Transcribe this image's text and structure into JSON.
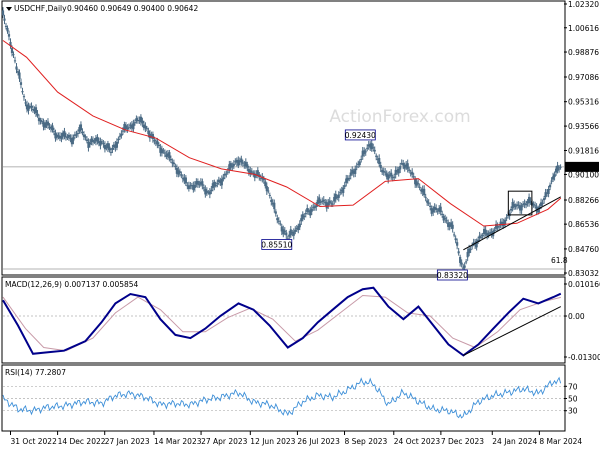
{
  "header": {
    "main_title": "USDCHF,Daily",
    "ohlc": "0.90460 0.90649 0.90400 0.90642"
  },
  "watermark": "ActionForex.com",
  "colors": {
    "candles": "#4a6a84",
    "ma": "#e02020",
    "macd": "#00008b",
    "signal": "#c89aa8",
    "rsi": "#3d8fd8",
    "price_box": "#000000",
    "label_border": "#00008b"
  },
  "chart_data": [
    {
      "type": "line",
      "title": "USDCHF,Daily",
      "subtitle": "0.90460 0.90649 0.90400 0.90642",
      "ylim": [
        0.8332,
        1.0232
      ],
      "yticks": [
        1.0232,
        1.00616,
        0.98876,
        0.97086,
        0.95316,
        0.93566,
        0.91816,
        0.901,
        0.88266,
        0.86536,
        0.8476,
        0.83032
      ],
      "ytick_labels": [
        "1.02320",
        "1.00616",
        "0.98876",
        "0.97086",
        "0.95316",
        "0.93566",
        "0.91816",
        "0.90100",
        "0.88266",
        "0.86536",
        "0.84760",
        "0.83032"
      ],
      "current_price": 0.90642,
      "current_price_label": "0.90642",
      "price_points": [
        {
          "date": "2022-10-24",
          "value": 1.015
        },
        {
          "date": "2022-10-31",
          "value": 0.996
        },
        {
          "date": "2022-11-07",
          "value": 0.974
        },
        {
          "date": "2022-11-14",
          "value": 0.952
        },
        {
          "date": "2022-11-21",
          "value": 0.948
        },
        {
          "date": "2022-11-28",
          "value": 0.94
        },
        {
          "date": "2022-12-05",
          "value": 0.936
        },
        {
          "date": "2022-12-14",
          "value": 0.929
        },
        {
          "date": "2022-12-28",
          "value": 0.927
        },
        {
          "date": "2023-01-05",
          "value": 0.933
        },
        {
          "date": "2023-01-12",
          "value": 0.924
        },
        {
          "date": "2023-01-24",
          "value": 0.925
        },
        {
          "date": "2023-02-02",
          "value": 0.917
        },
        {
          "date": "2023-02-13",
          "value": 0.932
        },
        {
          "date": "2023-02-27",
          "value": 0.94
        },
        {
          "date": "2023-03-06",
          "value": 0.936
        },
        {
          "date": "2023-03-14",
          "value": 0.925
        },
        {
          "date": "2023-03-24",
          "value": 0.917
        },
        {
          "date": "2023-04-05",
          "value": 0.905
        },
        {
          "date": "2023-04-14",
          "value": 0.893
        },
        {
          "date": "2023-04-27",
          "value": 0.894
        },
        {
          "date": "2023-05-04",
          "value": 0.888
        },
        {
          "date": "2023-05-18",
          "value": 0.899
        },
        {
          "date": "2023-05-31",
          "value": 0.912
        },
        {
          "date": "2023-06-12",
          "value": 0.904
        },
        {
          "date": "2023-06-26",
          "value": 0.896
        },
        {
          "date": "2023-07-07",
          "value": 0.87
        },
        {
          "date": "2023-07-14",
          "value": 0.86
        },
        {
          "date": "2023-07-17",
          "value": 0.8551
        },
        {
          "date": "2023-07-26",
          "value": 0.863
        },
        {
          "date": "2023-08-04",
          "value": 0.874
        },
        {
          "date": "2023-08-18",
          "value": 0.882
        },
        {
          "date": "2023-08-28",
          "value": 0.88
        },
        {
          "date": "2023-09-08",
          "value": 0.893
        },
        {
          "date": "2023-09-22",
          "value": 0.91
        },
        {
          "date": "2023-10-03",
          "value": 0.9243
        },
        {
          "date": "2023-10-12",
          "value": 0.905
        },
        {
          "date": "2023-10-24",
          "value": 0.898
        },
        {
          "date": "2023-11-01",
          "value": 0.91
        },
        {
          "date": "2023-11-13",
          "value": 0.898
        },
        {
          "date": "2023-11-28",
          "value": 0.877
        },
        {
          "date": "2023-12-07",
          "value": 0.874
        },
        {
          "date": "2023-12-18",
          "value": 0.862
        },
        {
          "date": "2023-12-28",
          "value": 0.8332
        },
        {
          "date": "2024-01-05",
          "value": 0.85
        },
        {
          "date": "2024-01-16",
          "value": 0.858
        },
        {
          "date": "2024-01-24",
          "value": 0.86
        },
        {
          "date": "2024-02-02",
          "value": 0.865
        },
        {
          "date": "2024-02-13",
          "value": 0.878
        },
        {
          "date": "2024-02-21",
          "value": 0.879
        },
        {
          "date": "2024-03-01",
          "value": 0.881
        },
        {
          "date": "2024-03-08",
          "value": 0.876
        },
        {
          "date": "2024-03-14",
          "value": 0.885
        },
        {
          "date": "2024-03-21",
          "value": 0.9
        },
        {
          "date": "2024-03-28",
          "value": 0.9064
        }
      ],
      "moving_average": [
        {
          "date": "2022-10-24",
          "value": 0.997
        },
        {
          "date": "2022-11-15",
          "value": 0.985
        },
        {
          "date": "2022-12-14",
          "value": 0.96
        },
        {
          "date": "2023-01-16",
          "value": 0.943
        },
        {
          "date": "2023-02-15",
          "value": 0.933
        },
        {
          "date": "2023-03-16",
          "value": 0.927
        },
        {
          "date": "2023-04-16",
          "value": 0.913
        },
        {
          "date": "2023-05-16",
          "value": 0.905
        },
        {
          "date": "2023-06-16",
          "value": 0.901
        },
        {
          "date": "2023-07-16",
          "value": 0.892
        },
        {
          "date": "2023-08-16",
          "value": 0.878
        },
        {
          "date": "2023-09-16",
          "value": 0.879
        },
        {
          "date": "2023-10-16",
          "value": 0.896
        },
        {
          "date": "2023-11-16",
          "value": 0.898
        },
        {
          "date": "2023-12-16",
          "value": 0.88
        },
        {
          "date": "2024-01-16",
          "value": 0.864
        },
        {
          "date": "2024-02-16",
          "value": 0.866
        },
        {
          "date": "2024-03-16",
          "value": 0.876
        },
        {
          "date": "2024-03-28",
          "value": 0.884
        }
      ],
      "annotations": [
        {
          "label": "0.92430",
          "date": "2023-10-03",
          "value": 0.9243,
          "placement": "above"
        },
        {
          "label": "0.85510",
          "date": "2023-07-17",
          "value": 0.8551,
          "placement": "below"
        },
        {
          "label": "0.83320",
          "date": "2023-12-28",
          "value": 0.8332,
          "placement": "below"
        },
        {
          "label": "61.8",
          "date": "2024-03-28",
          "value": 0.8352,
          "placement": "right"
        }
      ],
      "trendlines": [
        {
          "from": {
            "date": "2023-12-28",
            "value": 0.847
          },
          "to": {
            "date": "2024-03-28",
            "value": 0.885
          }
        }
      ],
      "horizontal_lines": [
        0.90642,
        0.8332
      ],
      "rectangle": {
        "from": {
          "date": "2024-02-08",
          "value": 0.889
        },
        "to": {
          "date": "2024-03-01",
          "value": 0.872
        }
      }
    },
    {
      "type": "line",
      "title": "MACD(12,26,9) 0.007137 0.005854",
      "ylim": [
        -0.013006,
        0.010166
      ],
      "yticks": [
        0.010166,
        0.0,
        -0.013006
      ],
      "ytick_labels": [
        "0.010166",
        "0.00",
        "-0.013006"
      ],
      "series": [
        {
          "role": "macd",
          "points": [
            {
              "date": "2022-10-24",
              "value": 0.005
            },
            {
              "date": "2022-11-07",
              "value": -0.003
            },
            {
              "date": "2022-11-21",
              "value": -0.012
            },
            {
              "date": "2022-12-05",
              "value": -0.0115
            },
            {
              "date": "2022-12-20",
              "value": -0.011
            },
            {
              "date": "2023-01-09",
              "value": -0.008
            },
            {
              "date": "2023-01-24",
              "value": -0.002
            },
            {
              "date": "2023-02-06",
              "value": 0.004
            },
            {
              "date": "2023-02-20",
              "value": 0.007
            },
            {
              "date": "2023-03-06",
              "value": 0.006
            },
            {
              "date": "2023-03-20",
              "value": -0.001
            },
            {
              "date": "2023-04-03",
              "value": -0.006
            },
            {
              "date": "2023-04-17",
              "value": -0.007
            },
            {
              "date": "2023-05-01",
              "value": -0.004
            },
            {
              "date": "2023-05-15",
              "value": 0.0
            },
            {
              "date": "2023-06-01",
              "value": 0.004
            },
            {
              "date": "2023-06-15",
              "value": 0.002
            },
            {
              "date": "2023-06-30",
              "value": -0.003
            },
            {
              "date": "2023-07-17",
              "value": -0.01
            },
            {
              "date": "2023-07-31",
              "value": -0.007
            },
            {
              "date": "2023-08-14",
              "value": -0.002
            },
            {
              "date": "2023-08-28",
              "value": 0.002
            },
            {
              "date": "2023-09-11",
              "value": 0.006
            },
            {
              "date": "2023-09-25",
              "value": 0.0085
            },
            {
              "date": "2023-10-05",
              "value": 0.009
            },
            {
              "date": "2023-10-19",
              "value": 0.003
            },
            {
              "date": "2023-11-02",
              "value": -0.001
            },
            {
              "date": "2023-11-16",
              "value": 0.003
            },
            {
              "date": "2023-11-30",
              "value": -0.003
            },
            {
              "date": "2023-12-14",
              "value": -0.009
            },
            {
              "date": "2023-12-28",
              "value": -0.0125
            },
            {
              "date": "2024-01-11",
              "value": -0.009
            },
            {
              "date": "2024-01-25",
              "value": -0.004
            },
            {
              "date": "2024-02-08",
              "value": 0.001
            },
            {
              "date": "2024-02-22",
              "value": 0.0055
            },
            {
              "date": "2024-03-07",
              "value": 0.004
            },
            {
              "date": "2024-03-21",
              "value": 0.006
            },
            {
              "date": "2024-03-28",
              "value": 0.0071
            }
          ]
        },
        {
          "role": "signal",
          "points": [
            {
              "date": "2022-10-24",
              "value": 0.006
            },
            {
              "date": "2022-11-14",
              "value": -0.004
            },
            {
              "date": "2022-12-01",
              "value": -0.01
            },
            {
              "date": "2022-12-22",
              "value": -0.011
            },
            {
              "date": "2023-01-16",
              "value": -0.007
            },
            {
              "date": "2023-02-06",
              "value": 0.001
            },
            {
              "date": "2023-02-27",
              "value": 0.006
            },
            {
              "date": "2023-03-20",
              "value": 0.002
            },
            {
              "date": "2023-04-10",
              "value": -0.005
            },
            {
              "date": "2023-05-01",
              "value": -0.005
            },
            {
              "date": "2023-05-22",
              "value": -0.0005
            },
            {
              "date": "2023-06-12",
              "value": 0.0025
            },
            {
              "date": "2023-07-03",
              "value": -0.001
            },
            {
              "date": "2023-07-24",
              "value": -0.008
            },
            {
              "date": "2023-08-14",
              "value": -0.0045
            },
            {
              "date": "2023-09-04",
              "value": 0.001
            },
            {
              "date": "2023-09-25",
              "value": 0.0065
            },
            {
              "date": "2023-10-16",
              "value": 0.006
            },
            {
              "date": "2023-11-06",
              "value": 0.001
            },
            {
              "date": "2023-11-27",
              "value": 0.0
            },
            {
              "date": "2023-12-18",
              "value": -0.007
            },
            {
              "date": "2024-01-08",
              "value": -0.01
            },
            {
              "date": "2024-01-29",
              "value": -0.005
            },
            {
              "date": "2024-02-19",
              "value": 0.002
            },
            {
              "date": "2024-03-11",
              "value": 0.0045
            },
            {
              "date": "2024-03-28",
              "value": 0.0059
            }
          ]
        }
      ],
      "trendlines": [
        {
          "from": {
            "date": "2023-12-28",
            "value": -0.0125
          },
          "to": {
            "date": "2024-03-28",
            "value": 0.003
          }
        }
      ]
    },
    {
      "type": "line",
      "title": "RSI(14) 77.2807",
      "ylim": [
        0,
        100
      ],
      "yticks": [
        70,
        50,
        30
      ],
      "ytick_labels": [
        "70",
        "50",
        "30"
      ],
      "series": [
        {
          "role": "rsi",
          "points": [
            {
              "date": "2022-10-24",
              "value": 50
            },
            {
              "date": "2022-11-07",
              "value": 33
            },
            {
              "date": "2022-11-21",
              "value": 30
            },
            {
              "date": "2022-12-05",
              "value": 36
            },
            {
              "date": "2022-12-20",
              "value": 38
            },
            {
              "date": "2023-01-09",
              "value": 45
            },
            {
              "date": "2023-01-24",
              "value": 42
            },
            {
              "date": "2023-02-06",
              "value": 55
            },
            {
              "date": "2023-02-20",
              "value": 58
            },
            {
              "date": "2023-03-06",
              "value": 52
            },
            {
              "date": "2023-03-20",
              "value": 40
            },
            {
              "date": "2023-04-03",
              "value": 42
            },
            {
              "date": "2023-04-17",
              "value": 40
            },
            {
              "date": "2023-05-01",
              "value": 48
            },
            {
              "date": "2023-05-15",
              "value": 52
            },
            {
              "date": "2023-06-01",
              "value": 60
            },
            {
              "date": "2023-06-15",
              "value": 44
            },
            {
              "date": "2023-06-30",
              "value": 40
            },
            {
              "date": "2023-07-17",
              "value": 24
            },
            {
              "date": "2023-07-31",
              "value": 45
            },
            {
              "date": "2023-08-14",
              "value": 55
            },
            {
              "date": "2023-08-28",
              "value": 52
            },
            {
              "date": "2023-09-11",
              "value": 64
            },
            {
              "date": "2023-09-25",
              "value": 78
            },
            {
              "date": "2023-10-05",
              "value": 74
            },
            {
              "date": "2023-10-19",
              "value": 40
            },
            {
              "date": "2023-11-02",
              "value": 60
            },
            {
              "date": "2023-11-16",
              "value": 45
            },
            {
              "date": "2023-11-30",
              "value": 32
            },
            {
              "date": "2023-12-14",
              "value": 30
            },
            {
              "date": "2023-12-28",
              "value": 20
            },
            {
              "date": "2024-01-11",
              "value": 45
            },
            {
              "date": "2024-01-25",
              "value": 55
            },
            {
              "date": "2024-02-08",
              "value": 60
            },
            {
              "date": "2024-02-22",
              "value": 66
            },
            {
              "date": "2024-03-07",
              "value": 58
            },
            {
              "date": "2024-03-21",
              "value": 78
            },
            {
              "date": "2024-03-28",
              "value": 77.28
            }
          ]
        }
      ]
    }
  ],
  "xaxis": {
    "tick_labels": [
      "31 Oct 2022",
      "14 Dec 2022",
      "27 Jan 2023",
      "14 Mar 2023",
      "27 Apr 2023",
      "12 Jun 2023",
      "26 Jul 2023",
      "8 Sep 2023",
      "24 Oct 2023",
      "7 Dec 2023",
      "24 Jan 2024",
      "8 Mar 2024"
    ],
    "tick_dates": [
      "2022-10-31",
      "2022-12-14",
      "2023-01-27",
      "2023-03-14",
      "2023-04-27",
      "2023-06-12",
      "2023-07-26",
      "2023-09-08",
      "2023-10-24",
      "2023-12-07",
      "2024-01-24",
      "2024-03-08"
    ],
    "range": [
      "2022-10-24",
      "2024-03-31"
    ]
  }
}
